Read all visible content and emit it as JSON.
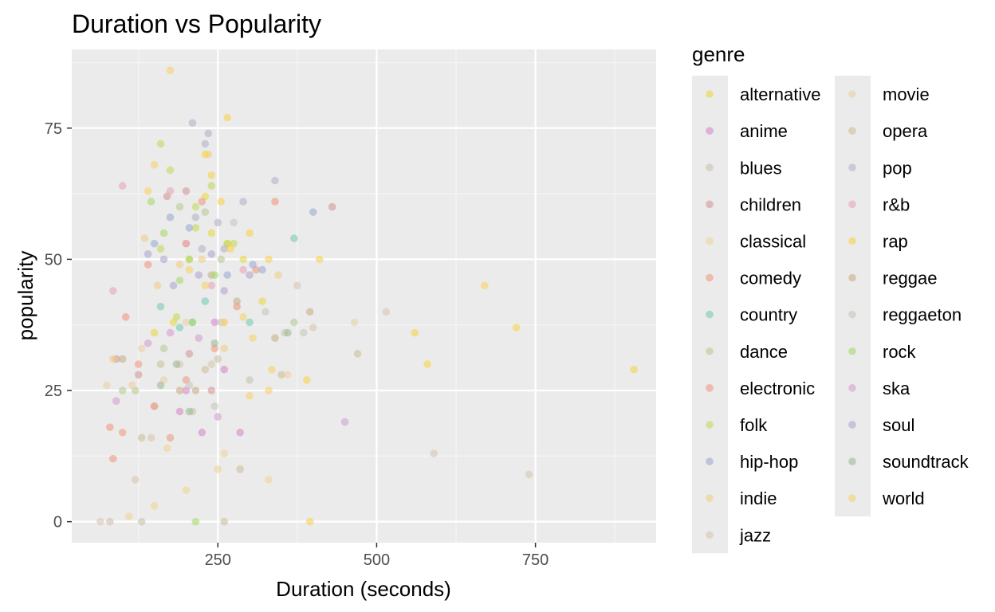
{
  "chart_data": {
    "type": "scatter",
    "title": "Duration vs Popularity",
    "xlabel": "Duration (seconds)",
    "ylabel": "popularity",
    "xlim": [
      20,
      940
    ],
    "ylim": [
      -4,
      90
    ],
    "x_ticks": [
      250,
      500,
      750
    ],
    "y_ticks": [
      0,
      25,
      50,
      75
    ],
    "x_minor": [
      125,
      375,
      625,
      875
    ],
    "y_minor": [
      12.5,
      37.5,
      62.5,
      87.5
    ],
    "x_tick_labels": [
      "250",
      "500",
      "750"
    ],
    "y_tick_labels": [
      "0",
      "25",
      "50",
      "75"
    ],
    "grid": true,
    "legend": {
      "title": "genre",
      "placement": "right",
      "columns": 2
    },
    "series": [
      {
        "name": "alternative",
        "color": "#E8D94A",
        "points": [
          [
            180,
            38
          ],
          [
            205,
            50
          ],
          [
            240,
            55
          ],
          [
            265,
            53
          ],
          [
            290,
            50
          ],
          [
            320,
            42
          ],
          [
            150,
            36
          ],
          [
            230,
            62
          ]
        ]
      },
      {
        "name": "anime",
        "color": "#D98AC8",
        "points": [
          [
            200,
            25
          ],
          [
            225,
            17
          ],
          [
            260,
            29
          ],
          [
            285,
            17
          ],
          [
            190,
            21
          ],
          [
            245,
            38
          ]
        ]
      },
      {
        "name": "blues",
        "color": "#C9C3AE",
        "points": [
          [
            80,
            0
          ],
          [
            130,
            0
          ],
          [
            150,
            22
          ],
          [
            210,
            21
          ],
          [
            250,
            31
          ],
          [
            300,
            27
          ]
        ]
      },
      {
        "name": "children",
        "color": "#D4989A",
        "points": [
          [
            90,
            31
          ],
          [
            125,
            28
          ],
          [
            170,
            62
          ],
          [
            205,
            32
          ],
          [
            240,
            25
          ],
          [
            430,
            60
          ],
          [
            200,
            63
          ]
        ]
      },
      {
        "name": "classical",
        "color": "#EED59A",
        "points": [
          [
            110,
            1
          ],
          [
            150,
            3
          ],
          [
            170,
            14
          ],
          [
            200,
            6
          ],
          [
            250,
            10
          ],
          [
            260,
            13
          ],
          [
            330,
            8
          ]
        ]
      },
      {
        "name": "comedy",
        "color": "#EE9C82",
        "points": [
          [
            85,
            12
          ],
          [
            100,
            17
          ],
          [
            125,
            30
          ],
          [
            150,
            22
          ],
          [
            175,
            16
          ],
          [
            200,
            27
          ],
          [
            245,
            33
          ]
        ]
      },
      {
        "name": "country",
        "color": "#7CCCB6",
        "points": [
          [
            160,
            41
          ],
          [
            190,
            37
          ],
          [
            210,
            38
          ],
          [
            300,
            38
          ],
          [
            370,
            54
          ],
          [
            230,
            42
          ]
        ]
      },
      {
        "name": "dance",
        "color": "#B8CC96",
        "points": [
          [
            100,
            25
          ],
          [
            120,
            25
          ],
          [
            190,
            60
          ],
          [
            230,
            59
          ],
          [
            255,
            50
          ],
          [
            370,
            38
          ],
          [
            165,
            33
          ]
        ]
      },
      {
        "name": "electronic",
        "color": "#EE9A80",
        "points": [
          [
            80,
            18
          ],
          [
            105,
            39
          ],
          [
            140,
            49
          ],
          [
            200,
            53
          ],
          [
            225,
            61
          ],
          [
            280,
            41
          ],
          [
            310,
            48
          ],
          [
            340,
            61
          ]
        ]
      },
      {
        "name": "folk",
        "color": "#C4DA5C",
        "points": [
          [
            160,
            72
          ],
          [
            175,
            67
          ],
          [
            215,
            60
          ],
          [
            240,
            64
          ],
          [
            265,
            53
          ],
          [
            275,
            53
          ],
          [
            215,
            56
          ],
          [
            160,
            52
          ],
          [
            185,
            39
          ]
        ]
      },
      {
        "name": "hip-hop",
        "color": "#9EACD2",
        "points": [
          [
            150,
            53
          ],
          [
            175,
            58
          ],
          [
            205,
            56
          ],
          [
            265,
            47
          ],
          [
            305,
            49
          ],
          [
            320,
            48
          ],
          [
            400,
            59
          ]
        ]
      },
      {
        "name": "indie",
        "color": "#F0CE88",
        "points": [
          [
            85,
            31
          ],
          [
            135,
            54
          ],
          [
            155,
            45
          ],
          [
            190,
            49
          ],
          [
            225,
            50
          ],
          [
            235,
            70
          ],
          [
            260,
            33
          ],
          [
            345,
            47
          ]
        ]
      },
      {
        "name": "jazz",
        "color": "#D8C6B2",
        "points": [
          [
            65,
            0
          ],
          [
            120,
            8
          ],
          [
            145,
            16
          ],
          [
            190,
            30
          ],
          [
            240,
            30
          ],
          [
            375,
            45
          ],
          [
            400,
            37
          ],
          [
            515,
            40
          ],
          [
            590,
            13
          ],
          [
            740,
            9
          ]
        ]
      },
      {
        "name": "movie",
        "color": "#ECD0AA",
        "points": [
          [
            75,
            26
          ],
          [
            115,
            26
          ],
          [
            130,
            33
          ],
          [
            165,
            27
          ],
          [
            200,
            38
          ],
          [
            260,
            38
          ],
          [
            360,
            28
          ],
          [
            465,
            38
          ]
        ]
      },
      {
        "name": "opera",
        "color": "#CFBF9C",
        "points": [
          [
            130,
            16
          ],
          [
            160,
            30
          ],
          [
            230,
            29
          ],
          [
            260,
            0
          ],
          [
            285,
            10
          ],
          [
            350,
            28
          ],
          [
            470,
            32
          ]
        ]
      },
      {
        "name": "pop",
        "color": "#B6B2C8",
        "points": [
          [
            210,
            76
          ],
          [
            230,
            72
          ],
          [
            235,
            74
          ],
          [
            260,
            52
          ],
          [
            250,
            57
          ],
          [
            215,
            58
          ],
          [
            340,
            65
          ],
          [
            225,
            52
          ],
          [
            290,
            61
          ]
        ]
      },
      {
        "name": "r&b",
        "color": "#E8A6B6",
        "points": [
          [
            85,
            44
          ],
          [
            100,
            64
          ],
          [
            175,
            63
          ],
          [
            200,
            53
          ],
          [
            240,
            45
          ],
          [
            290,
            48
          ]
        ]
      },
      {
        "name": "rap",
        "color": "#F6D450",
        "points": [
          [
            265,
            77
          ],
          [
            230,
            70
          ],
          [
            240,
            66
          ],
          [
            255,
            61
          ],
          [
            270,
            52
          ],
          [
            300,
            55
          ],
          [
            330,
            50
          ],
          [
            410,
            50
          ],
          [
            560,
            36
          ],
          [
            580,
            30
          ],
          [
            720,
            37
          ],
          [
            905,
            29
          ],
          [
            395,
            0
          ],
          [
            390,
            27
          ]
        ]
      },
      {
        "name": "reggae",
        "color": "#C8B088",
        "points": [
          [
            100,
            31
          ],
          [
            190,
            25
          ],
          [
            215,
            25
          ],
          [
            240,
            47
          ],
          [
            280,
            42
          ],
          [
            340,
            35
          ],
          [
            395,
            40
          ]
        ]
      },
      {
        "name": "reggaeton",
        "color": "#C8C8C0",
        "points": [
          [
            205,
            26
          ],
          [
            245,
            22
          ],
          [
            255,
            38
          ],
          [
            275,
            57
          ],
          [
            325,
            40
          ],
          [
            355,
            36
          ],
          [
            385,
            36
          ]
        ]
      },
      {
        "name": "rock",
        "color": "#A8D870",
        "points": [
          [
            145,
            61
          ],
          [
            165,
            55
          ],
          [
            190,
            46
          ],
          [
            205,
            50
          ],
          [
            245,
            47
          ],
          [
            215,
            0
          ],
          [
            210,
            38
          ]
        ]
      },
      {
        "name": "ska",
        "color": "#D4A0D0",
        "points": [
          [
            90,
            23
          ],
          [
            140,
            34
          ],
          [
            175,
            36
          ],
          [
            220,
            35
          ],
          [
            250,
            20
          ],
          [
            450,
            19
          ]
        ]
      },
      {
        "name": "soul",
        "color": "#B0A6D0",
        "points": [
          [
            140,
            51
          ],
          [
            165,
            50
          ],
          [
            180,
            45
          ],
          [
            220,
            47
          ],
          [
            240,
            51
          ],
          [
            260,
            44
          ],
          [
            300,
            47
          ]
        ]
      },
      {
        "name": "soundtrack",
        "color": "#9CBC96",
        "points": [
          [
            160,
            26
          ],
          [
            185,
            30
          ],
          [
            205,
            21
          ],
          [
            245,
            34
          ],
          [
            360,
            36
          ]
        ]
      },
      {
        "name": "world",
        "color": "#F6D26A",
        "points": [
          [
            140,
            63
          ],
          [
            150,
            68
          ],
          [
            175,
            86
          ],
          [
            205,
            48
          ],
          [
            230,
            45
          ],
          [
            260,
            38
          ],
          [
            290,
            39
          ],
          [
            305,
            35
          ],
          [
            335,
            29
          ],
          [
            670,
            45
          ],
          [
            330,
            25
          ],
          [
            300,
            24
          ]
        ]
      }
    ]
  }
}
